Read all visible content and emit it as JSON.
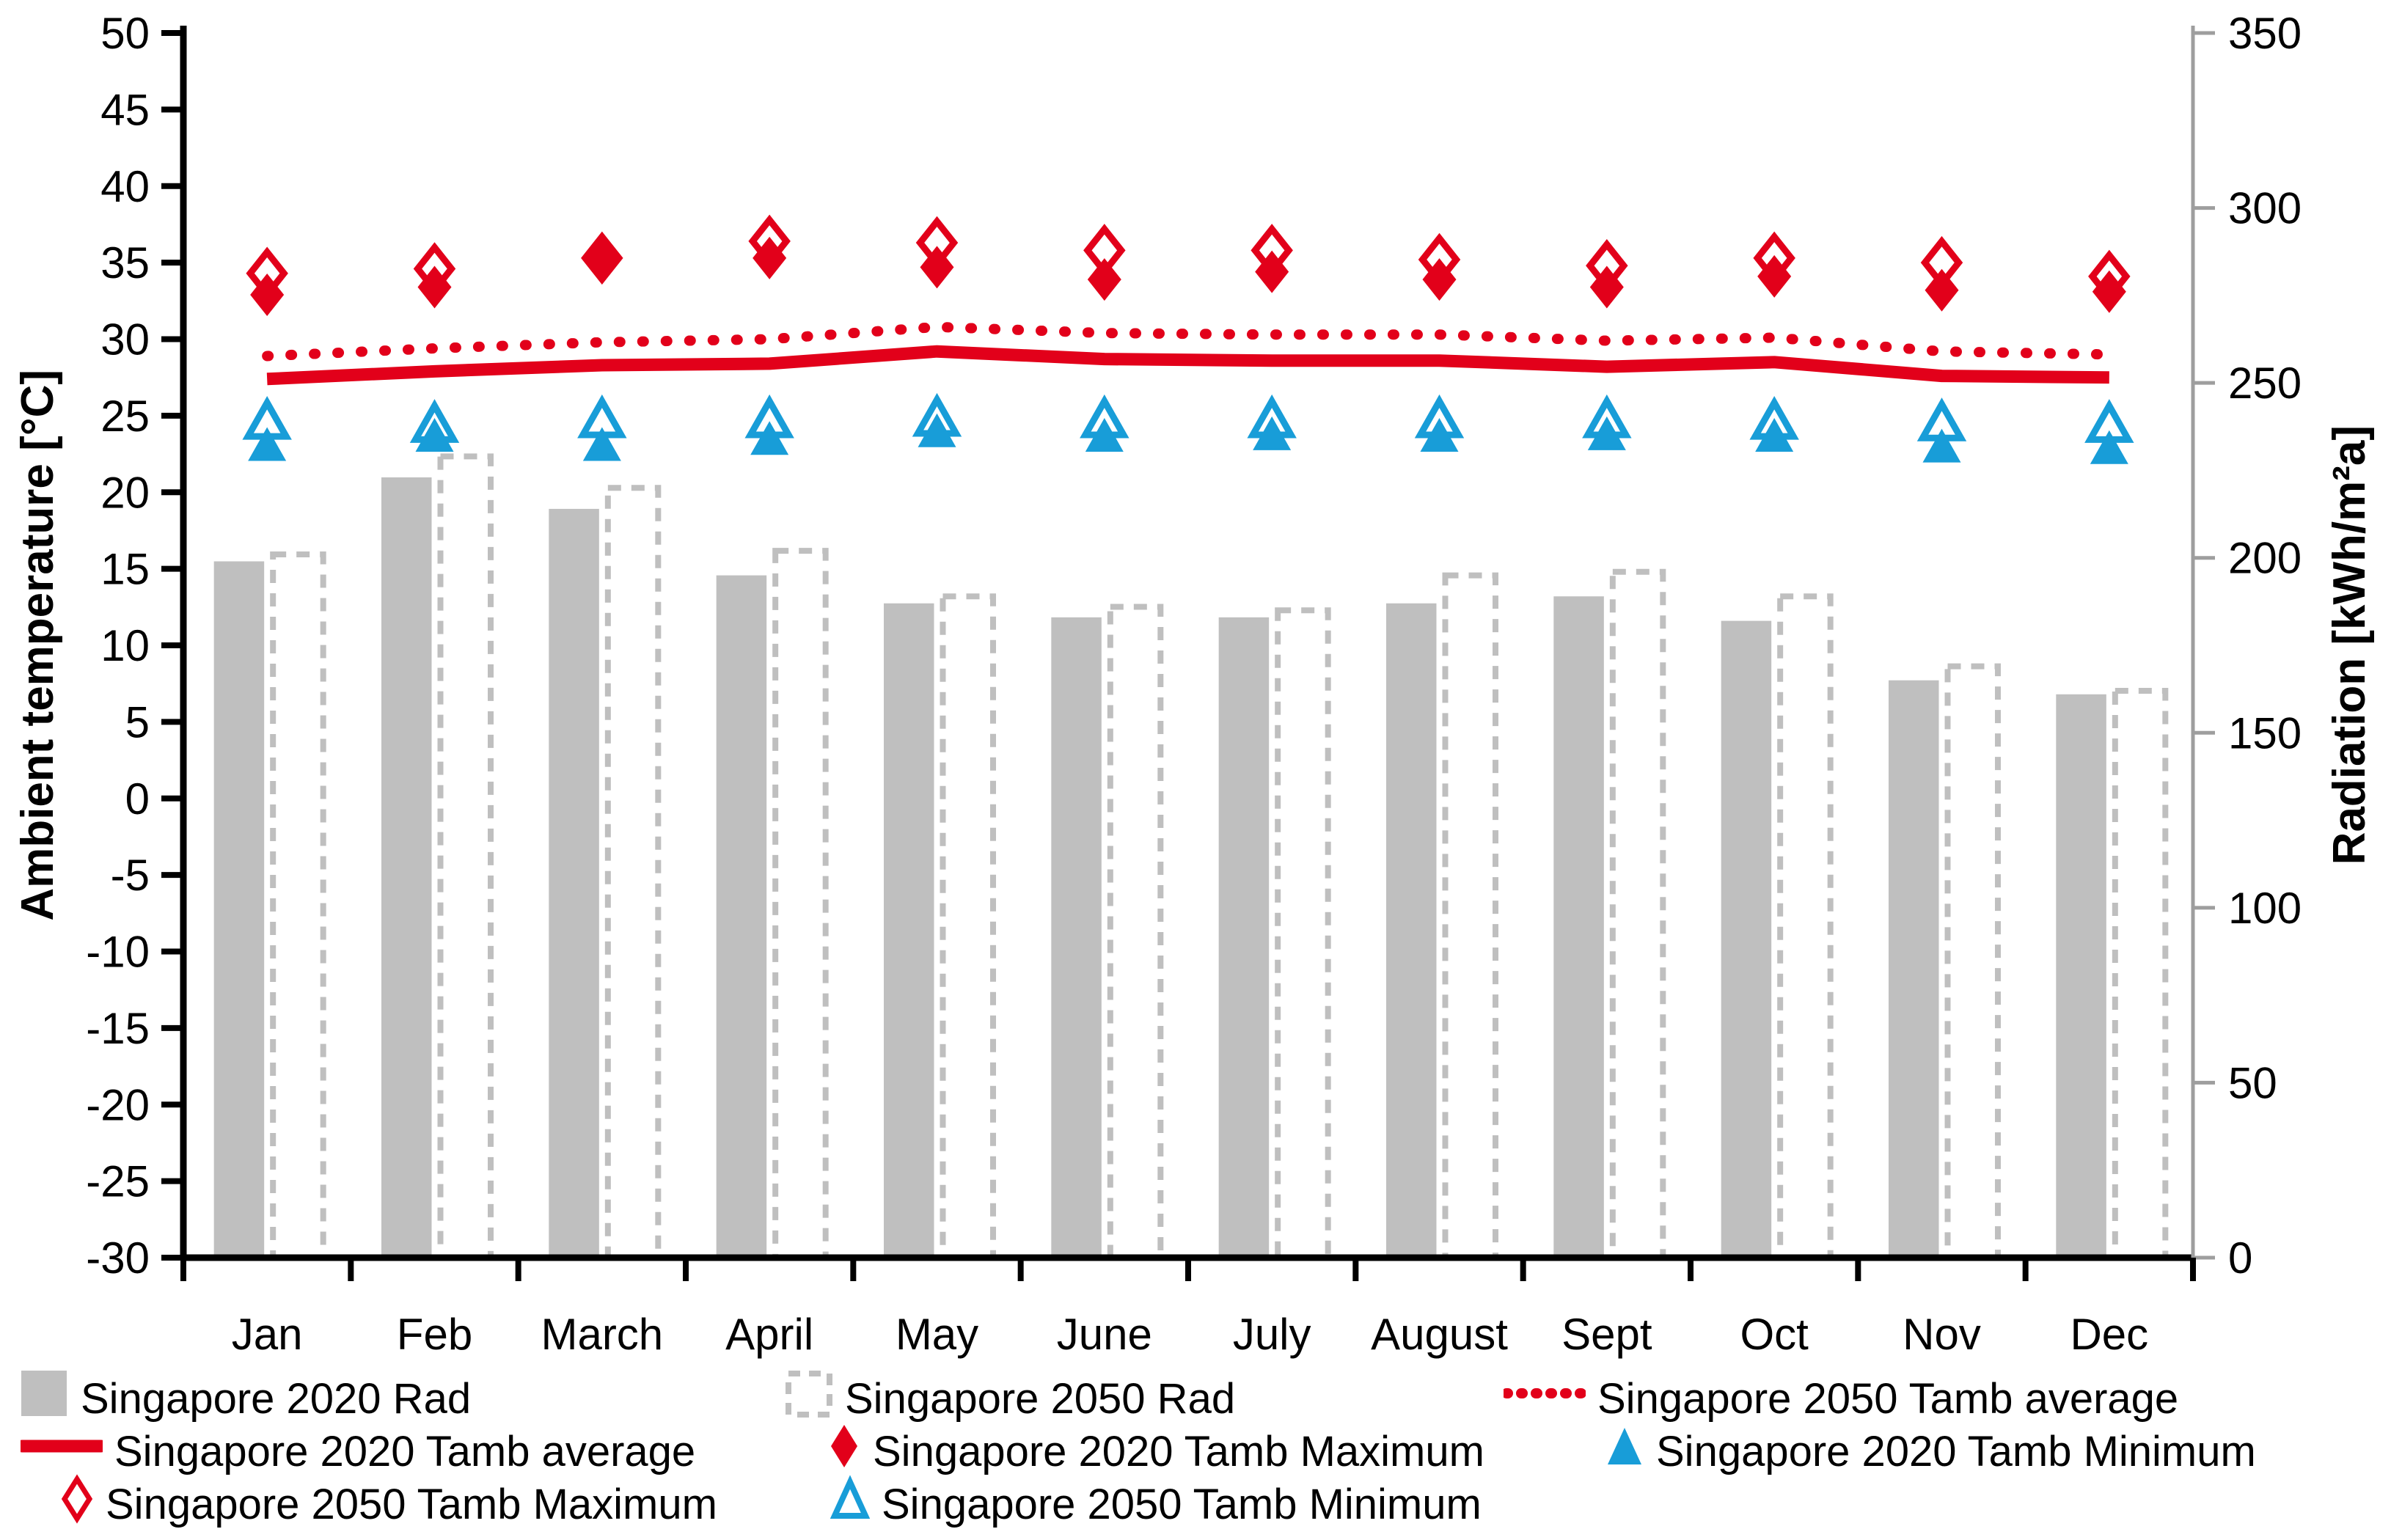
{
  "chart_data": {
    "type": "combo",
    "title": "",
    "months": [
      "Jan",
      "Feb",
      "March",
      "April",
      "May",
      "June",
      "July",
      "August",
      "Sept",
      "Oct",
      "Nov",
      "Dec"
    ],
    "axes": {
      "left": {
        "label": "Ambient temperature [°C]",
        "min": -30,
        "max": 50,
        "step": 5,
        "ticks": [
          50,
          45,
          40,
          35,
          30,
          25,
          20,
          15,
          10,
          5,
          0,
          -5,
          -10,
          -15,
          -20,
          -25,
          -30
        ]
      },
      "right": {
        "label": "Radiation [kWh/m²a]",
        "min": 0,
        "max": 350,
        "step": 50,
        "ticks": [
          350,
          300,
          250,
          200,
          150,
          100,
          50,
          0
        ]
      }
    },
    "series": [
      {
        "id": "rad_2020",
        "name": "Singapore 2020 Rad",
        "type": "bar",
        "style": "solid",
        "axis": "right",
        "unit": "kWh/m²a",
        "values": [
          199,
          223,
          214,
          195,
          187,
          183,
          183,
          187,
          189,
          182,
          165,
          161
        ]
      },
      {
        "id": "rad_2050",
        "name": "Singapore 2050 Rad",
        "type": "bar",
        "style": "dashed-outline",
        "axis": "right",
        "unit": "kWh/m²a",
        "values": [
          201,
          229,
          220,
          202,
          189,
          186,
          185,
          195,
          196,
          189,
          169,
          162
        ]
      },
      {
        "id": "tamb_avg_2020",
        "name": "Singapore 2020 Tamb average",
        "type": "line",
        "style": "solid",
        "axis": "left",
        "unit": "°C",
        "values": [
          27.4,
          27.9,
          28.3,
          28.4,
          29.2,
          28.7,
          28.6,
          28.6,
          28.2,
          28.5,
          27.6,
          27.5
        ]
      },
      {
        "id": "tamb_avg_2050",
        "name": "Singapore 2050 Tamb average",
        "type": "line",
        "style": "dotted",
        "axis": "left",
        "unit": "°C",
        "values": [
          28.9,
          29.4,
          29.8,
          30.0,
          30.8,
          30.4,
          30.3,
          30.3,
          29.9,
          30.1,
          29.2,
          29.0
        ]
      },
      {
        "id": "tamb_max_2020",
        "name": "Singapore 2020 Tamb Maximum",
        "type": "scatter",
        "marker": "diamond-filled",
        "axis": "left",
        "unit": "°C",
        "values": [
          32.9,
          33.4,
          35.1,
          35.3,
          34.7,
          33.9,
          34.4,
          33.9,
          33.4,
          34.1,
          33.2,
          33.1
        ]
      },
      {
        "id": "tamb_max_2050",
        "name": "Singapore 2050 Tamb Maximum",
        "type": "scatter",
        "marker": "diamond-open",
        "axis": "left",
        "unit": "°C",
        "values": [
          34.3,
          34.6,
          35.3,
          36.4,
          36.3,
          35.8,
          35.8,
          35.2,
          34.8,
          35.3,
          35.0,
          34.1
        ]
      },
      {
        "id": "tamb_min_2020",
        "name": "Singapore 2020 Tamb Minimum",
        "type": "scatter",
        "marker": "triangle-filled",
        "axis": "left",
        "unit": "°C",
        "values": [
          23.1,
          23.7,
          23.1,
          23.5,
          24.0,
          23.7,
          23.8,
          23.7,
          23.8,
          23.7,
          23.0,
          22.9
        ]
      },
      {
        "id": "tamb_min_2050",
        "name": "Singapore 2050 Tamb Minimum",
        "type": "scatter",
        "marker": "triangle-open",
        "axis": "left",
        "unit": "°C",
        "values": [
          24.7,
          24.5,
          24.8,
          24.8,
          24.9,
          24.8,
          24.8,
          24.8,
          24.8,
          24.7,
          24.6,
          24.5
        ]
      }
    ],
    "legend_rows": [
      [
        "rad_2020",
        "rad_2050",
        "tamb_avg_2050"
      ],
      [
        "tamb_avg_2020",
        "tamb_max_2020",
        "tamb_min_2020"
      ],
      [
        "tamb_max_2050",
        "tamb_min_2050"
      ]
    ],
    "colors": {
      "red": "#e2001a",
      "blue": "#189dd8",
      "bar_gray": "#bfbfbf",
      "right_axis_gray": "#9e9e9e",
      "black": "#000000"
    }
  }
}
